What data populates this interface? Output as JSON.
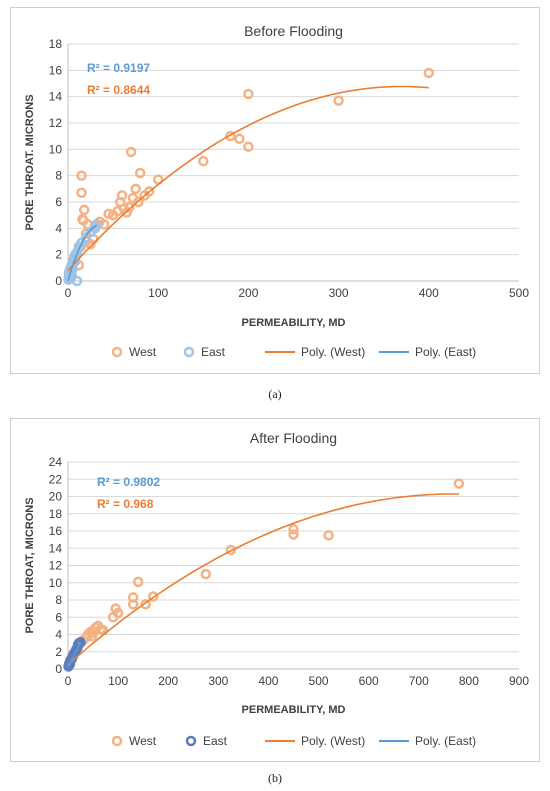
{
  "charts": [
    {
      "caption": "(a)",
      "chart_data": {
        "type": "scatter",
        "title": "Before Flooding",
        "xlabel": "PERMEABILITY, MD",
        "ylabel": "PORE THROAT. MICRONS",
        "xlim": [
          0,
          500
        ],
        "ylim": [
          0,
          18
        ],
        "xticks": [
          0,
          100,
          200,
          300,
          400,
          500
        ],
        "yticks": [
          0,
          2,
          4,
          6,
          8,
          10,
          12,
          14,
          16,
          18
        ],
        "grid": true,
        "legend_position": "bottom",
        "legend": [
          "West",
          "East",
          "Poly. (West)",
          "Poly. (East)"
        ],
        "annotations": [
          {
            "text": "R² = 0.9197",
            "color": "#5b9bd5"
          },
          {
            "text": "R² = 0.8644",
            "color": "#ed7d31"
          }
        ],
        "series": [
          {
            "name": "West",
            "color": "#f4b183",
            "points": [
              [
                2,
                0.5
              ],
              [
                5,
                1.0
              ],
              [
                8,
                1.5
              ],
              [
                10,
                2.0
              ],
              [
                12,
                1.2
              ],
              [
                14,
                2.6
              ],
              [
                15,
                8.0
              ],
              [
                15,
                6.7
              ],
              [
                16,
                4.7
              ],
              [
                17,
                4.6
              ],
              [
                18,
                5.4
              ],
              [
                20,
                3.6
              ],
              [
                20,
                3.0
              ],
              [
                22,
                4.3
              ],
              [
                25,
                2.8
              ],
              [
                28,
                3.2
              ],
              [
                30,
                4.2
              ],
              [
                35,
                4.5
              ],
              [
                40,
                4.3
              ],
              [
                45,
                5.1
              ],
              [
                50,
                5.0
              ],
              [
                55,
                5.3
              ],
              [
                58,
                6.0
              ],
              [
                60,
                6.5
              ],
              [
                62,
                5.5
              ],
              [
                65,
                5.2
              ],
              [
                68,
                5.6
              ],
              [
                70,
                9.8
              ],
              [
                72,
                6.3
              ],
              [
                75,
                7.0
              ],
              [
                78,
                6.0
              ],
              [
                80,
                8.2
              ],
              [
                85,
                6.5
              ],
              [
                90,
                6.8
              ],
              [
                100,
                7.7
              ],
              [
                150,
                9.1
              ],
              [
                180,
                11.0
              ],
              [
                190,
                10.8
              ],
              [
                200,
                14.2
              ],
              [
                200,
                10.2
              ],
              [
                300,
                13.7
              ],
              [
                400,
                15.8
              ]
            ]
          },
          {
            "name": "East",
            "color": "#9dc3e6",
            "points": [
              [
                0.5,
                0.1
              ],
              [
                1,
                0.3
              ],
              [
                1,
                0.6
              ],
              [
                2,
                0.8
              ],
              [
                2,
                0.4
              ],
              [
                3,
                1.0
              ],
              [
                3,
                0.2
              ],
              [
                4,
                1.2
              ],
              [
                4,
                0.5
              ],
              [
                5,
                1.4
              ],
              [
                5,
                0.9
              ],
              [
                6,
                1.6
              ],
              [
                7,
                1.8
              ],
              [
                8,
                1.5
              ],
              [
                8,
                2.0
              ],
              [
                10,
                2.2
              ],
              [
                10,
                0.0
              ],
              [
                12,
                2.6
              ],
              [
                15,
                2.9
              ],
              [
                20,
                3.3
              ],
              [
                25,
                3.7
              ],
              [
                30,
                4.0
              ],
              [
                32,
                4.3
              ]
            ]
          },
          {
            "name": "Poly. (West)",
            "color": "#ed7d31",
            "type": "polynomial-trendline",
            "coefficients": [
              0.8,
              0.0755,
              -0.000102
            ],
            "x_range": [
              0,
              400
            ]
          },
          {
            "name": "Poly. (East)",
            "color": "#5b9bd5",
            "type": "polynomial-trendline",
            "coefficients": [
              0.0,
              0.24,
              -0.0034
            ],
            "x_range": [
              0,
              32
            ]
          }
        ]
      }
    },
    {
      "caption": "(b)",
      "chart_data": {
        "type": "scatter",
        "title": "After Flooding",
        "xlabel": "PERMEABILITY, MD",
        "ylabel": "PORE THROAT, MICRONS",
        "xlim": [
          0,
          900
        ],
        "ylim": [
          0,
          24
        ],
        "xticks": [
          0,
          100,
          200,
          300,
          400,
          500,
          600,
          700,
          800,
          900
        ],
        "yticks": [
          0,
          2,
          4,
          6,
          8,
          10,
          12,
          14,
          16,
          18,
          20,
          22,
          24
        ],
        "grid": true,
        "legend_position": "bottom",
        "legend": [
          "West",
          "East",
          "Poly. (West)",
          "Poly. (East)"
        ],
        "annotations": [
          {
            "text": "R² = 0.9802",
            "color": "#5b9bd5"
          },
          {
            "text": "R² = 0.968",
            "color": "#ed7d31"
          }
        ],
        "series": [
          {
            "name": "West",
            "color": "#f4b183",
            "points": [
              [
                3,
                0.5
              ],
              [
                5,
                1.0
              ],
              [
                8,
                1.5
              ],
              [
                12,
                1.8
              ],
              [
                15,
                2.2
              ],
              [
                20,
                2.5
              ],
              [
                25,
                3.0
              ],
              [
                30,
                3.3
              ],
              [
                35,
                3.6
              ],
              [
                40,
                4.0
              ],
              [
                45,
                4.3
              ],
              [
                48,
                3.8
              ],
              [
                50,
                4.2
              ],
              [
                55,
                4.8
              ],
              [
                60,
                5.0
              ],
              [
                65,
                4.6
              ],
              [
                70,
                4.5
              ],
              [
                90,
                6.0
              ],
              [
                95,
                7.0
              ],
              [
                100,
                6.5
              ],
              [
                130,
                7.5
              ],
              [
                130,
                8.3
              ],
              [
                140,
                10.1
              ],
              [
                155,
                7.5
              ],
              [
                170,
                8.4
              ],
              [
                275,
                11.0
              ],
              [
                325,
                13.8
              ],
              [
                450,
                15.6
              ],
              [
                450,
                16.2
              ],
              [
                520,
                15.5
              ],
              [
                780,
                21.5
              ]
            ]
          },
          {
            "name": "East",
            "color": "#5b7bc0",
            "points": [
              [
                1,
                0.3
              ],
              [
                2,
                0.5
              ],
              [
                3,
                0.7
              ],
              [
                4,
                0.6
              ],
              [
                5,
                1.0
              ],
              [
                8,
                1.2
              ],
              [
                10,
                1.5
              ],
              [
                12,
                1.8
              ],
              [
                15,
                2.0
              ],
              [
                18,
                2.4
              ],
              [
                20,
                2.8
              ],
              [
                22,
                3.0
              ],
              [
                25,
                3.1
              ]
            ]
          },
          {
            "name": "Poly. (West)",
            "color": "#ed7d31",
            "type": "polynomial-trendline",
            "coefficients": [
              0.5,
              0.0515,
              -3.35e-05
            ],
            "x_range": [
              0,
              780
            ]
          },
          {
            "name": "Poly. (East)",
            "color": "#5b9bd5",
            "type": "polynomial-trendline",
            "coefficients": [
              0.2,
              0.12,
              -0.0002
            ],
            "x_range": [
              0,
              25
            ]
          }
        ]
      }
    }
  ]
}
